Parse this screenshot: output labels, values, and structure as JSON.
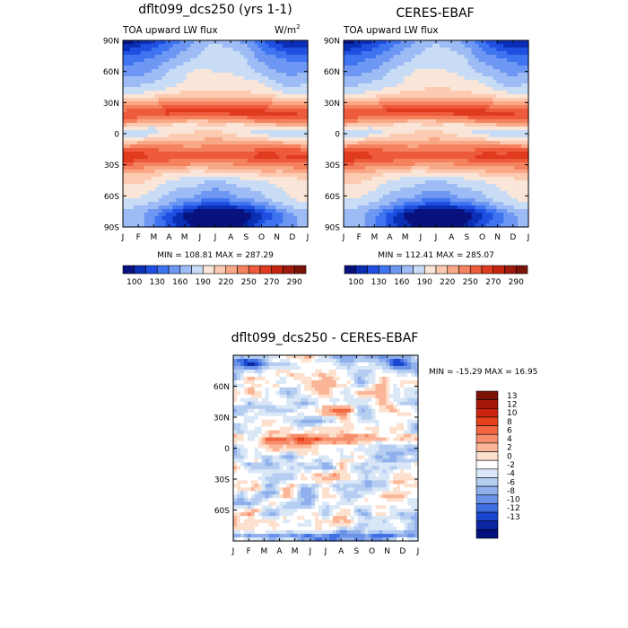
{
  "chart_data": [
    {
      "type": "heatmap",
      "title": "dflt099_dcs250 (yrs 1-1)",
      "subtitle_left": "TOA upward LW flux",
      "units": "W/m",
      "units_sup": "2",
      "x_ticks": [
        "J",
        "F",
        "M",
        "A",
        "M",
        "J",
        "J",
        "A",
        "S",
        "O",
        "N",
        "D",
        "J"
      ],
      "y_ticks": [
        "90N",
        "60N",
        "30N",
        "0",
        "30S",
        "60S",
        "90S"
      ],
      "stats": "MIN = 108.81  MAX = 287.29",
      "colorbar_labels": [
        "100",
        "130",
        "160",
        "190",
        "220",
        "250",
        "270",
        "290"
      ]
    },
    {
      "type": "heatmap",
      "title": "CERES-EBAF",
      "subtitle_left": "TOA upward LW flux",
      "x_ticks": [
        "J",
        "F",
        "M",
        "A",
        "M",
        "J",
        "J",
        "A",
        "S",
        "O",
        "N",
        "D",
        "J"
      ],
      "y_ticks": [
        "90N",
        "60N",
        "30N",
        "0",
        "30S",
        "60S",
        "90S"
      ],
      "stats": "MIN = 112.41  MAX = 285.07",
      "colorbar_labels": [
        "100",
        "130",
        "160",
        "190",
        "220",
        "250",
        "270",
        "290"
      ]
    },
    {
      "type": "heatmap",
      "title": "dflt099_dcs250 - CERES-EBAF",
      "x_ticks": [
        "J",
        "F",
        "M",
        "A",
        "M",
        "J",
        "J",
        "A",
        "S",
        "O",
        "N",
        "D",
        "J"
      ],
      "y_ticks": [
        "60N",
        "30N",
        "0",
        "30S",
        "60S"
      ],
      "stats": "MIN = -15.29  MAX =  16.95",
      "colorbar_labels": [
        "13",
        "12",
        "10",
        "8",
        "6",
        "4",
        "2",
        "0",
        "-2",
        "-4",
        "-6",
        "-8",
        "-10",
        "-12",
        "-13"
      ]
    }
  ],
  "colors": {
    "abs_levels": [
      "#08127f",
      "#0a2fb5",
      "#1f4fe0",
      "#3f74f0",
      "#6d97f2",
      "#9dbbf4",
      "#c9dcf6",
      "#fae6d8",
      "#fccab0",
      "#f9a887",
      "#f5825f",
      "#ee5b3c",
      "#e03a1f",
      "#c42410",
      "#9e1b0d",
      "#7a1408"
    ],
    "diff_levels": [
      "#7a1408",
      "#a8180a",
      "#cc2410",
      "#e6401c",
      "#f26640",
      "#f78e6b",
      "#fbb597",
      "#fde0cd",
      "#ffffff",
      "#d9e7f7",
      "#b4cdf1",
      "#8fb0ec",
      "#6a92e8",
      "#3f6fe3",
      "#1a45cf",
      "#0a26a0",
      "#06107a"
    ]
  }
}
